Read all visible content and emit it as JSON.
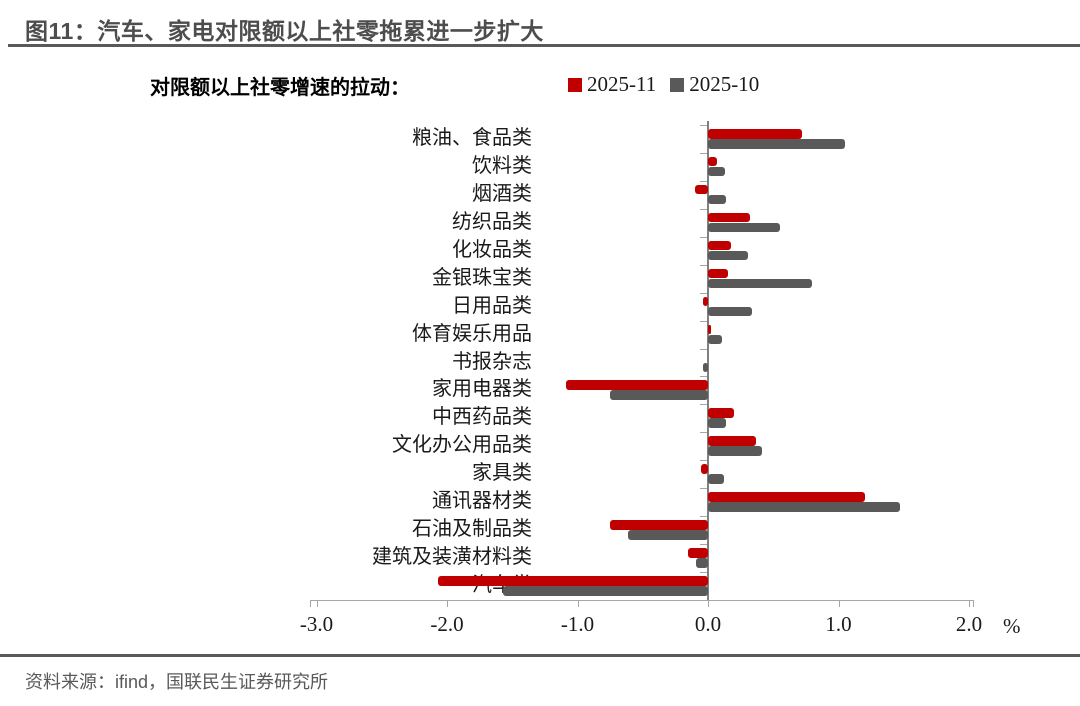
{
  "header": {
    "title": "图11：汽车、家电对限额以上社零拖累进一步扩大"
  },
  "footer": {
    "source": "资料来源：ifind，国联民生证券研究所"
  },
  "colors": {
    "series_2025_11": "#c00000",
    "series_2025_10": "#595959",
    "axis": "#a6a6a6",
    "rule": "#595959",
    "title_text": "#4d4d4d"
  },
  "chart_data": {
    "type": "bar",
    "orientation": "horizontal",
    "title": "对限额以上社零增速的拉动：",
    "legend_position": "top",
    "grid": false,
    "categories": [
      "粮油、食品类",
      "饮料类",
      "烟酒类",
      "纺织品类",
      "化妆品类",
      "金银珠宝类",
      "日用品类",
      "体育娱乐用品",
      "书报杂志",
      "家用电器类",
      "中西药品类",
      "文化办公用品类",
      "家具类",
      "通讯器材类",
      "石油及制品类",
      "建筑及装潢材料类",
      "汽车类"
    ],
    "series": [
      {
        "name": "2025-11",
        "color": "#c00000",
        "values": [
          0.72,
          0.07,
          -0.1,
          0.32,
          0.18,
          0.15,
          -0.04,
          0.02,
          0.0,
          -1.09,
          0.2,
          0.37,
          -0.05,
          1.2,
          -0.75,
          -0.15,
          -2.07
        ]
      },
      {
        "name": "2025-10",
        "color": "#595959",
        "values": [
          1.05,
          0.13,
          0.14,
          0.55,
          0.31,
          0.8,
          0.34,
          0.11,
          -0.04,
          -0.75,
          0.14,
          0.41,
          0.12,
          1.47,
          -0.61,
          -0.09,
          -1.57
        ]
      }
    ],
    "xlim": [
      -3.0,
      2.0
    ],
    "x_ticks": [
      -3.0,
      -2.0,
      -1.0,
      0.0,
      1.0,
      2.0
    ],
    "x_tick_labels": [
      "-3.0",
      "-2.0",
      "-1.0",
      "0.0",
      "1.0",
      "2.0"
    ],
    "unit_label": "%"
  }
}
